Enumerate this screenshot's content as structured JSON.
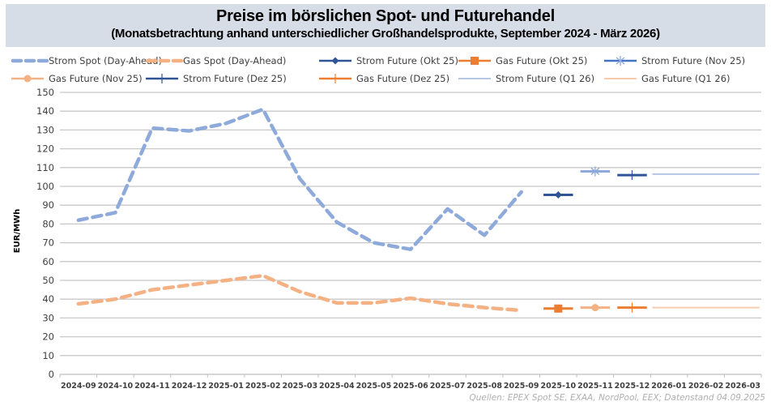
{
  "chart_data": {
    "type": "line",
    "title": "Preise im börslichen Spot- und Futurehandel",
    "subtitle": "(Monatsbetrachtung anhand unterschiedlicher Großhandelsprodukte, September 2024 - März 2026)",
    "xlabel": "",
    "ylabel": "EUR/MWh",
    "ylim": [
      0,
      150
    ],
    "yticks": [
      0,
      10,
      20,
      30,
      40,
      50,
      60,
      70,
      80,
      90,
      100,
      110,
      120,
      130,
      140,
      150
    ],
    "grid": true,
    "legend_position": "top",
    "categories": [
      "2024-09",
      "2024-10",
      "2024-11",
      "2024-12",
      "2025-01",
      "2025-02",
      "2025-03",
      "2025-04",
      "2025-05",
      "2025-06",
      "2025-07",
      "2025-08",
      "2025-09",
      "2025-10",
      "2025-11",
      "2025-12",
      "2026-01",
      "2026-02",
      "2026-03"
    ],
    "series": [
      {
        "name": "Strom Spot (Day-Ahead)",
        "color": "#8eaadb",
        "style": "dashed",
        "marker": "none",
        "values": [
          82,
          86,
          131,
          129.5,
          133.5,
          141,
          104,
          81,
          70,
          66.5,
          88,
          74,
          97,
          null,
          null,
          null,
          null,
          null,
          null
        ]
      },
      {
        "name": "Gas Spot (Day-Ahead)",
        "color": "#f4b183",
        "style": "dashed",
        "marker": "none",
        "values": [
          37.5,
          40,
          45,
          47.5,
          50,
          52.5,
          44,
          38,
          38,
          40.5,
          37.5,
          35.5,
          34,
          null,
          null,
          null,
          null,
          null,
          null
        ]
      },
      {
        "name": "Strom Future (Okt 25)",
        "color": "#2f5597",
        "style": "solid",
        "marker": "diamond",
        "values": [
          null,
          null,
          null,
          null,
          null,
          null,
          null,
          null,
          null,
          null,
          null,
          null,
          null,
          95.5,
          null,
          null,
          null,
          null,
          null
        ]
      },
      {
        "name": "Gas Future (Okt 25)",
        "color": "#ed7d31",
        "style": "solid",
        "marker": "square",
        "values": [
          null,
          null,
          null,
          null,
          null,
          null,
          null,
          null,
          null,
          null,
          null,
          null,
          null,
          35,
          null,
          null,
          null,
          null,
          null
        ]
      },
      {
        "name": "Strom Future (Nov 25)",
        "color": "#8eaadb",
        "legend_color": "#4472c4",
        "style": "solid",
        "marker": "star",
        "values": [
          null,
          null,
          null,
          null,
          null,
          null,
          null,
          null,
          null,
          null,
          null,
          null,
          null,
          null,
          108,
          null,
          null,
          null,
          null
        ]
      },
      {
        "name": "Gas Future (Nov 25)",
        "color": "#f4b183",
        "style": "solid",
        "marker": "circle",
        "values": [
          null,
          null,
          null,
          null,
          null,
          null,
          null,
          null,
          null,
          null,
          null,
          null,
          null,
          null,
          35.5,
          null,
          null,
          null,
          null
        ]
      },
      {
        "name": "Strom Future (Dez 25)",
        "color": "#2f5597",
        "style": "solid",
        "marker": "plus",
        "values": [
          null,
          null,
          null,
          null,
          null,
          null,
          null,
          null,
          null,
          null,
          null,
          null,
          null,
          null,
          null,
          106,
          null,
          null,
          null
        ]
      },
      {
        "name": "Gas Future (Dez 25)",
        "color": "#ed7d31",
        "style": "solid",
        "marker": "plus",
        "values": [
          null,
          null,
          null,
          null,
          null,
          null,
          null,
          null,
          null,
          null,
          null,
          null,
          null,
          null,
          null,
          35.5,
          null,
          null,
          null
        ]
      },
      {
        "name": "Strom Future (Q1 26)",
        "color": "#b4c7e7",
        "style": "solid",
        "marker": "none",
        "values": [
          null,
          null,
          null,
          null,
          null,
          null,
          null,
          null,
          null,
          null,
          null,
          null,
          null,
          null,
          null,
          null,
          106.5,
          106.5,
          106.5
        ]
      },
      {
        "name": "Gas Future (Q1 26)",
        "color": "#f8cbad",
        "style": "solid",
        "marker": "none",
        "values": [
          null,
          null,
          null,
          null,
          null,
          null,
          null,
          null,
          null,
          null,
          null,
          null,
          null,
          null,
          null,
          null,
          35.5,
          35.5,
          35.5
        ]
      }
    ],
    "annotations": [
      "Quellen: EPEX Spot SE, EXAA, NordPool, EEX; Datenstand 04.09.2025"
    ]
  }
}
